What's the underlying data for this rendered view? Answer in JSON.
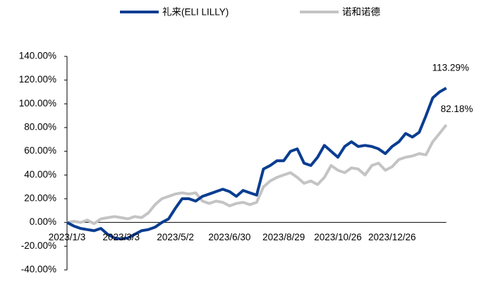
{
  "chart_data": {
    "type": "line",
    "categories": [
      "2023/1/3",
      null,
      null,
      null,
      null,
      null,
      null,
      null,
      "2023/3/3",
      null,
      null,
      null,
      null,
      null,
      null,
      null,
      "2023/5/2",
      null,
      null,
      null,
      null,
      null,
      null,
      null,
      "2023/6/30",
      null,
      null,
      null,
      null,
      null,
      null,
      null,
      "2023/8/29",
      null,
      null,
      null,
      null,
      null,
      null,
      null,
      "2023/10/26",
      null,
      null,
      null,
      null,
      null,
      null,
      null,
      "2023/12/26",
      null,
      null,
      null,
      null,
      null,
      null,
      null,
      null
    ],
    "series": [
      {
        "name": "礼来(ELI LILLY)",
        "color": "#0a3d91",
        "values": [
          0,
          -3,
          -5,
          -6,
          -7,
          -5,
          -10,
          -13,
          -14,
          -13,
          -10,
          -7,
          -6,
          -4,
          0,
          3,
          12,
          20,
          20,
          18,
          22,
          24,
          26,
          28,
          26,
          22,
          27,
          25,
          23,
          45,
          48,
          52,
          52,
          60,
          62,
          50,
          48,
          55,
          65,
          60,
          55,
          64,
          68,
          64,
          65,
          64,
          62,
          58,
          64,
          68,
          75,
          72,
          76,
          90,
          105,
          110,
          113.29
        ]
      },
      {
        "name": "诺和诺德",
        "color": "#c4c4c4",
        "values": [
          0,
          1,
          0,
          2,
          -1,
          3,
          4,
          5,
          4,
          3,
          5,
          4,
          8,
          15,
          20,
          22,
          24,
          25,
          24,
          25,
          18,
          16,
          18,
          17,
          14,
          16,
          17,
          15,
          17,
          30,
          35,
          38,
          40,
          42,
          38,
          33,
          35,
          32,
          38,
          48,
          44,
          42,
          46,
          45,
          40,
          48,
          50,
          44,
          47,
          53,
          55,
          56,
          58,
          57,
          68,
          75,
          82.18
        ]
      }
    ],
    "annotations": [
      "113.29%",
      "82.18%"
    ],
    "ylim": [
      -40,
      140
    ],
    "yticks": [
      {
        "value": -40,
        "label": "-40.00%"
      },
      {
        "value": -20,
        "label": "-20.00%"
      },
      {
        "value": 0,
        "label": "0.00%"
      },
      {
        "value": 20,
        "label": "20.00%"
      },
      {
        "value": 40,
        "label": "40.00%"
      },
      {
        "value": 60,
        "label": "60.00%"
      },
      {
        "value": 80,
        "label": "80.00%"
      },
      {
        "value": 100,
        "label": "100.00%"
      },
      {
        "value": 120,
        "label": "120.00%"
      },
      {
        "value": 140,
        "label": "140.00%"
      }
    ],
    "grid": false
  }
}
